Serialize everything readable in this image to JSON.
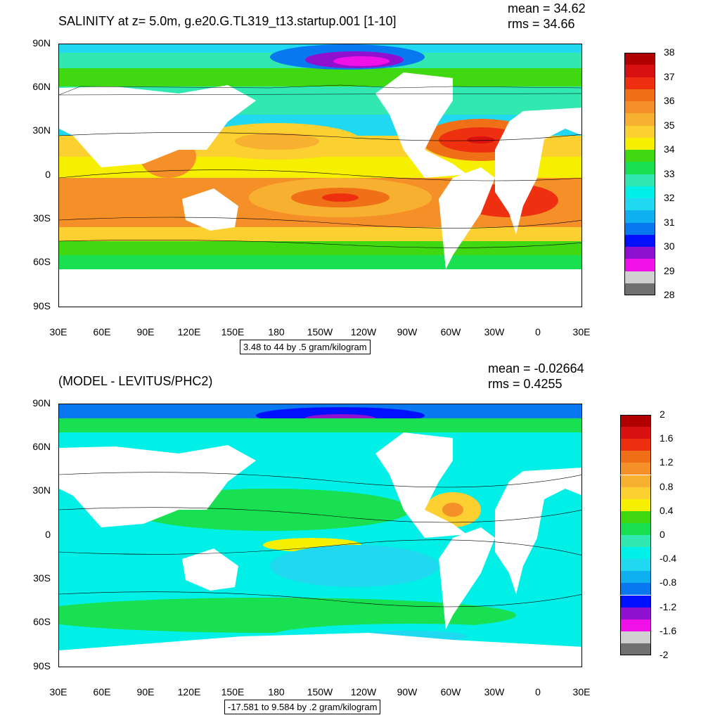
{
  "top_panel": {
    "title": "SALINITY at z=   5.0m, g.e20.G.TL319_t13.startup.001 [1-10]",
    "mean": "mean = 34.62",
    "rms": "rms = 34.66",
    "info": "3.48 to 44 by .5 gram/kilogram",
    "lat_labels": [
      "90N",
      "60N",
      "30N",
      "0",
      "30S",
      "60S",
      "90S"
    ],
    "lon_labels": [
      "30E",
      "60E",
      "90E",
      "120E",
      "150E",
      "180",
      "150W",
      "120W",
      "90W",
      "60W",
      "30W",
      "0",
      "30E"
    ],
    "colorbar": {
      "colors": [
        "#b00000",
        "#d81010",
        "#ee3010",
        "#f07018",
        "#f59028",
        "#f8b030",
        "#fbd030",
        "#f6f000",
        "#40d810",
        "#18e050",
        "#30e8b0",
        "#00f0e8",
        "#20d8f0",
        "#10b0f0",
        "#0878f0",
        "#0010ff",
        "#9010d0",
        "#f010e8",
        "#d0d0d0",
        "#707070"
      ],
      "labels": [
        "38",
        "37",
        "36",
        "35",
        "34",
        "33",
        "32",
        "31",
        "30",
        "29",
        "28"
      ]
    }
  },
  "bottom_panel": {
    "title": "(MODEL - LEVITUS/PHC2)",
    "mean": "mean = -0.02664",
    "rms": "rms = 0.4255",
    "info": "-17.581 to 9.584 by .2 gram/kilogram",
    "lat_labels": [
      "90N",
      "60N",
      "30N",
      "0",
      "30S",
      "60S",
      "90S"
    ],
    "lon_labels": [
      "30E",
      "60E",
      "90E",
      "120E",
      "150E",
      "180",
      "150W",
      "120W",
      "90W",
      "60W",
      "30W",
      "0",
      "30E"
    ],
    "colorbar": {
      "colors": [
        "#b00000",
        "#d81010",
        "#ee3010",
        "#f07018",
        "#f59028",
        "#f8b030",
        "#fbd030",
        "#f6f000",
        "#40d810",
        "#18e050",
        "#30e8b0",
        "#00f0e8",
        "#20d8f0",
        "#10b0f0",
        "#0878f0",
        "#0010ff",
        "#9010d0",
        "#f010e8",
        "#d0d0d0",
        "#707070"
      ],
      "labels": [
        "2",
        "1.6",
        "1.2",
        "0.8",
        "0.4",
        "0",
        "-0.4",
        "-0.8",
        "-1.2",
        "-1.6",
        "-2"
      ]
    }
  }
}
